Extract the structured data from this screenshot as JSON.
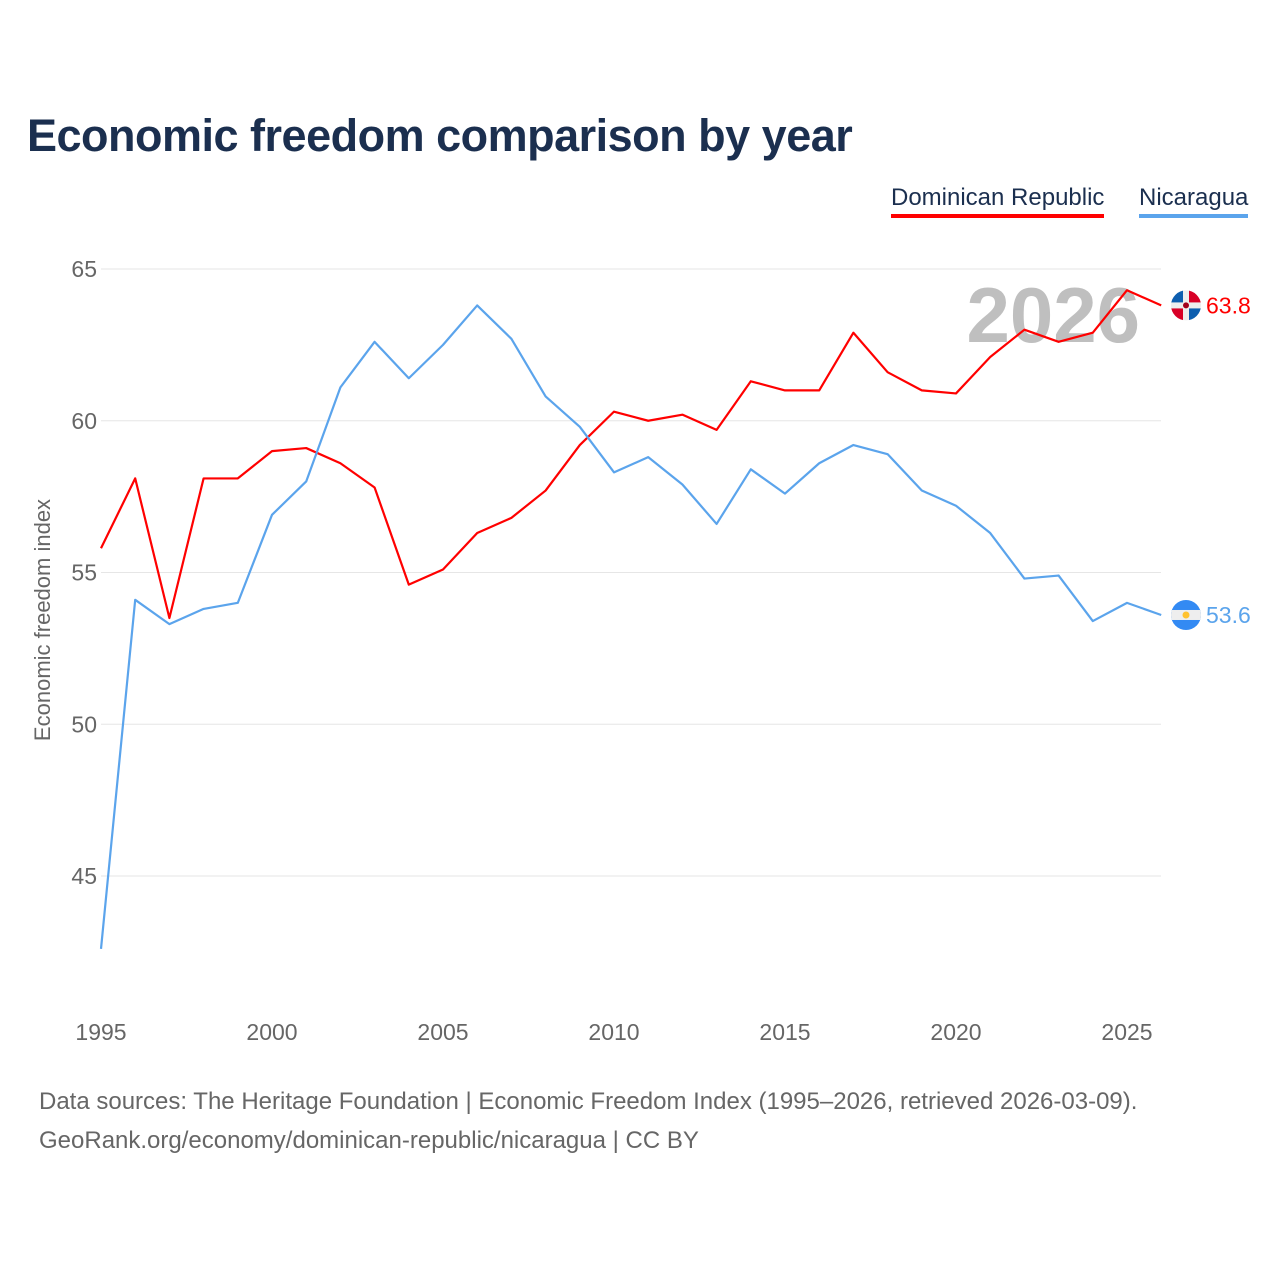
{
  "chart_data": {
    "type": "line",
    "title": "Economic freedom comparison by year",
    "xlabel": "",
    "ylabel": "Economic freedom index",
    "ylim": [
      41,
      66.5
    ],
    "xlim": [
      1995,
      2026
    ],
    "yticks": [
      45,
      50,
      55,
      60,
      65
    ],
    "xticks": [
      1995,
      2000,
      2005,
      2010,
      2015,
      2020,
      2025
    ],
    "grid": true,
    "legend_placement": "top-right",
    "watermark_year": "2026",
    "x": [
      1995,
      1996,
      1997,
      1998,
      1999,
      2000,
      2001,
      2002,
      2003,
      2004,
      2005,
      2006,
      2007,
      2008,
      2009,
      2010,
      2011,
      2012,
      2013,
      2014,
      2015,
      2016,
      2017,
      2018,
      2019,
      2020,
      2021,
      2022,
      2023,
      2024,
      2025,
      2026
    ],
    "series": [
      {
        "name": "Dominican Republic",
        "color": "#ff0000",
        "end_label": "63.8",
        "values": [
          55.8,
          58.1,
          53.5,
          58.1,
          58.1,
          59.0,
          59.1,
          58.6,
          57.8,
          54.6,
          55.1,
          56.3,
          56.8,
          57.7,
          59.2,
          60.3,
          60.0,
          60.2,
          59.7,
          61.3,
          61.0,
          61.0,
          62.9,
          61.6,
          61.0,
          60.9,
          62.1,
          63.0,
          62.6,
          62.9,
          64.3,
          63.8
        ]
      },
      {
        "name": "Nicaragua",
        "color": "#5ba4ec",
        "end_label": "53.6",
        "values": [
          42.6,
          54.1,
          53.3,
          53.8,
          54.0,
          56.9,
          58.0,
          61.1,
          62.6,
          61.4,
          62.5,
          63.8,
          62.7,
          60.8,
          59.8,
          58.3,
          58.8,
          57.9,
          56.6,
          58.4,
          57.6,
          58.6,
          59.2,
          58.9,
          57.7,
          57.2,
          56.3,
          54.8,
          54.9,
          53.4,
          54.0,
          53.6
        ]
      }
    ]
  },
  "footer": {
    "line1": "Data sources: The Heritage Foundation | Economic Freedom Index (1995–2026, retrieved 2026-03-09).",
    "line2": "GeoRank.org/economy/dominican-republic/nicaragua | CC BY"
  }
}
